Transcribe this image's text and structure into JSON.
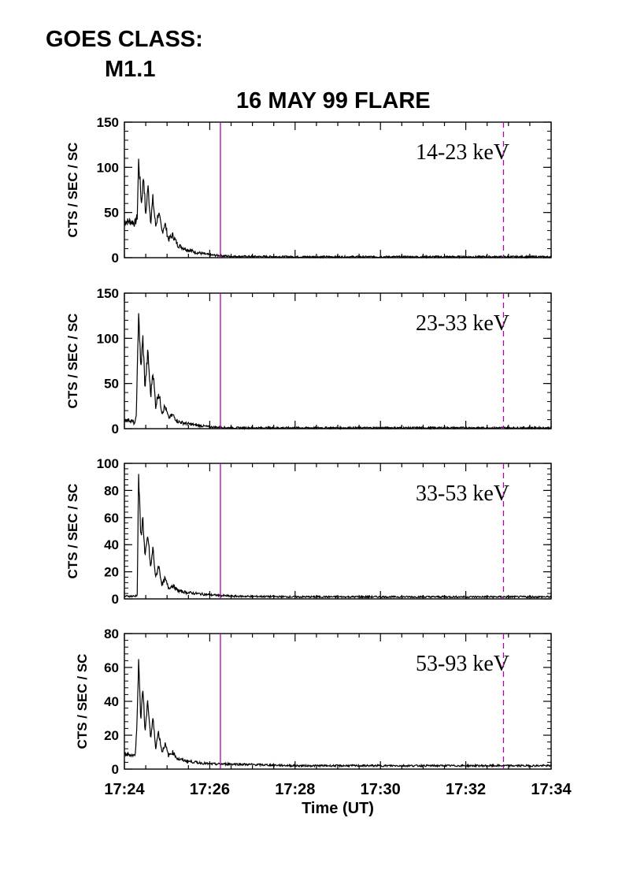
{
  "header": {
    "goes_label": "GOES CLASS:",
    "goes_value": "M1.1",
    "title": "16 MAY 99 FLARE"
  },
  "chart_data": {
    "type": "line",
    "title": "16 MAY 99 FLARE",
    "xlabel": "Time (UT)",
    "x_ticks": [
      "17:24",
      "17:26",
      "17:28",
      "17:30",
      "17:32",
      "17:34"
    ],
    "xlim": [
      "17:24",
      "17:34"
    ],
    "x_units": "minutes (UT)",
    "line_color": "#000000",
    "marker_color": "#b000b0",
    "markers": [
      {
        "time": "17:26:15",
        "style": "solid"
      },
      {
        "time": "17:32:53",
        "style": "dashed"
      }
    ],
    "panels": [
      {
        "band": "14-23 keV",
        "ylabel": "CTS / SEC / SC",
        "ylim": [
          0,
          150
        ],
        "yticks": [
          "0",
          "50",
          "100",
          "150"
        ],
        "series_points": [
          [
            "17:24:00",
            40
          ],
          [
            "17:24:10",
            40
          ],
          [
            "17:24:15",
            38
          ],
          [
            "17:24:18",
            45
          ],
          [
            "17:24:20",
            107
          ],
          [
            "17:24:24",
            60
          ],
          [
            "17:24:27",
            92
          ],
          [
            "17:24:30",
            45
          ],
          [
            "17:24:33",
            80
          ],
          [
            "17:24:37",
            40
          ],
          [
            "17:24:40",
            65
          ],
          [
            "17:24:44",
            35
          ],
          [
            "17:24:48",
            50
          ],
          [
            "17:24:53",
            28
          ],
          [
            "17:24:57",
            38
          ],
          [
            "17:25:02",
            20
          ],
          [
            "17:25:08",
            25
          ],
          [
            "17:25:15",
            14
          ],
          [
            "17:25:25",
            10
          ],
          [
            "17:25:40",
            6
          ],
          [
            "17:26:00",
            3
          ],
          [
            "17:26:30",
            1.5
          ],
          [
            "17:28:00",
            1
          ],
          [
            "17:34:00",
            1
          ]
        ]
      },
      {
        "band": "23-33 keV",
        "ylabel": "CTS / SEC / SC",
        "ylim": [
          0,
          150
        ],
        "yticks": [
          "0",
          "50",
          "100",
          "150"
        ],
        "series_points": [
          [
            "17:24:00",
            10
          ],
          [
            "17:24:10",
            9
          ],
          [
            "17:24:15",
            5
          ],
          [
            "17:24:17",
            20
          ],
          [
            "17:24:20",
            132
          ],
          [
            "17:24:23",
            65
          ],
          [
            "17:24:26",
            100
          ],
          [
            "17:24:29",
            45
          ],
          [
            "17:24:33",
            85
          ],
          [
            "17:24:37",
            35
          ],
          [
            "17:24:40",
            65
          ],
          [
            "17:24:44",
            25
          ],
          [
            "17:24:48",
            40
          ],
          [
            "17:24:53",
            18
          ],
          [
            "17:24:57",
            25
          ],
          [
            "17:25:02",
            12
          ],
          [
            "17:25:08",
            15
          ],
          [
            "17:25:15",
            8
          ],
          [
            "17:25:25",
            6
          ],
          [
            "17:25:40",
            4
          ],
          [
            "17:26:00",
            2
          ],
          [
            "17:26:30",
            1
          ],
          [
            "17:34:00",
            1
          ]
        ]
      },
      {
        "band": "33-53 keV",
        "ylabel": "CTS / SEC / SC",
        "ylim": [
          0,
          100
        ],
        "yticks": [
          "0",
          "20",
          "40",
          "60",
          "80",
          "100"
        ],
        "series_points": [
          [
            "17:24:00",
            2
          ],
          [
            "17:24:15",
            2
          ],
          [
            "17:24:18",
            3
          ],
          [
            "17:24:20",
            92
          ],
          [
            "17:24:23",
            45
          ],
          [
            "17:24:26",
            60
          ],
          [
            "17:24:29",
            30
          ],
          [
            "17:24:33",
            47
          ],
          [
            "17:24:37",
            22
          ],
          [
            "17:24:40",
            38
          ],
          [
            "17:24:44",
            15
          ],
          [
            "17:24:48",
            25
          ],
          [
            "17:24:53",
            10
          ],
          [
            "17:24:57",
            15
          ],
          [
            "17:25:02",
            8
          ],
          [
            "17:25:08",
            10
          ],
          [
            "17:25:15",
            6
          ],
          [
            "17:25:25",
            5
          ],
          [
            "17:25:40",
            4
          ],
          [
            "17:26:00",
            3
          ],
          [
            "17:26:30",
            2
          ],
          [
            "17:28:00",
            1.5
          ],
          [
            "17:34:00",
            1.5
          ]
        ]
      },
      {
        "band": "53-93 keV",
        "ylabel": "CTS / SEC / SC",
        "ylim": [
          0,
          80
        ],
        "yticks": [
          "0",
          "20",
          "40",
          "60",
          "80"
        ],
        "series_points": [
          [
            "17:24:00",
            9
          ],
          [
            "17:24:15",
            8
          ],
          [
            "17:24:17",
            20
          ],
          [
            "17:24:20",
            63
          ],
          [
            "17:24:23",
            30
          ],
          [
            "17:24:26",
            48
          ],
          [
            "17:24:29",
            22
          ],
          [
            "17:24:33",
            40
          ],
          [
            "17:24:37",
            18
          ],
          [
            "17:24:40",
            30
          ],
          [
            "17:24:44",
            13
          ],
          [
            "17:24:48",
            22
          ],
          [
            "17:24:53",
            10
          ],
          [
            "17:24:57",
            15
          ],
          [
            "17:25:02",
            8
          ],
          [
            "17:25:08",
            10
          ],
          [
            "17:25:15",
            6
          ],
          [
            "17:25:25",
            5
          ],
          [
            "17:25:40",
            4
          ],
          [
            "17:26:00",
            3
          ],
          [
            "17:26:30",
            3
          ],
          [
            "17:28:00",
            2
          ],
          [
            "17:34:00",
            2
          ]
        ]
      }
    ]
  }
}
